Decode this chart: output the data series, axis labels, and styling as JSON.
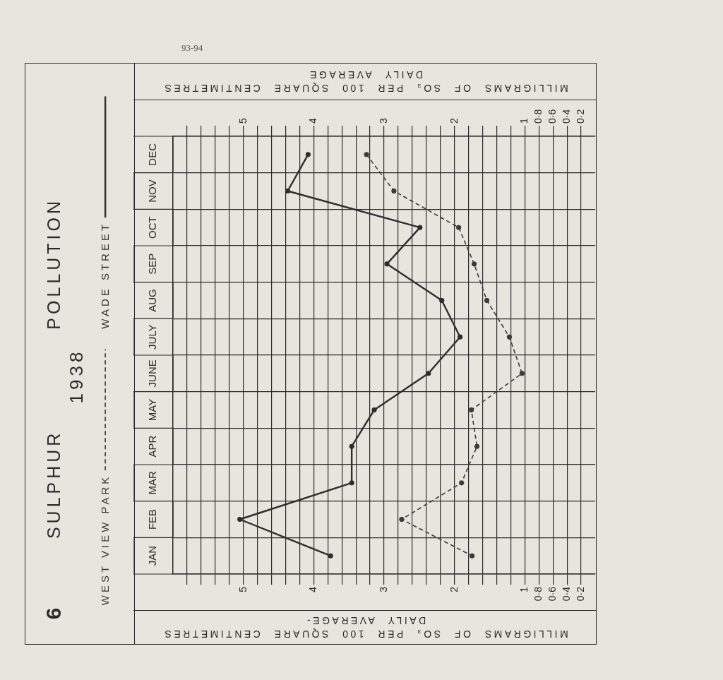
{
  "chart_data": {
    "type": "line",
    "orientation": "horizontal",
    "title": "SULPHUR POLLUTION",
    "subtitle": "1938",
    "xlabel": "MILLIGRAMS OF SO₃ PER 100 SQUARE CENTIMETRES\nDAILY AVERAGE-",
    "x2label": "MILLIGRAMS OF SO₃ PER 100 SQUARE CENTIMETRES\nDAILY AVERAGE",
    "annotations": [
      "93-94",
      "6"
    ],
    "categories": [
      "DEC",
      "NOV",
      "OCT",
      "SEP",
      "AUG",
      "JULY",
      "JUNE",
      "MAY",
      "APR",
      "MAR",
      "FEB",
      "JAN"
    ],
    "series": [
      {
        "name": "WEST VIEW PARK",
        "color": "#3a3a3a",
        "line_style": "dashed",
        "values": [
          3.25,
          2.86,
          1.94,
          1.72,
          1.54,
          1.22,
          1.04,
          1.76,
          1.68,
          1.9,
          2.75,
          1.75
        ]
      },
      {
        "name": "WADE STREET",
        "color": "#2e2e2e",
        "line_style": "solid",
        "values": [
          4.08,
          4.37,
          2.49,
          2.96,
          2.18,
          1.92,
          2.37,
          3.14,
          3.46,
          3.46,
          5.05,
          3.76
        ]
      }
    ],
    "xlim": [
      6,
      0
    ],
    "xticks": [
      {
        "value": 0.2,
        "label": "0·2"
      },
      {
        "value": 0.4,
        "label": "0·4"
      },
      {
        "value": 0.6,
        "label": "0·6"
      },
      {
        "value": 0.8,
        "label": "0·8"
      },
      1,
      {
        "value": 1.2,
        "label": null
      },
      {
        "value": 1.4,
        "label": null
      },
      {
        "value": 1.6,
        "label": null
      },
      {
        "value": 1.8,
        "label": null
      },
      2,
      {
        "value": 2.2,
        "label": null
      },
      {
        "value": 2.4,
        "label": null
      },
      {
        "value": 2.6,
        "label": null
      },
      {
        "value": 2.8,
        "label": null
      },
      3,
      {
        "value": 3.2,
        "label": null
      },
      {
        "value": 3.4,
        "label": null
      },
      {
        "value": 3.6,
        "label": null
      },
      {
        "value": 3.8,
        "label": null
      },
      4,
      {
        "value": 4.2,
        "label": null
      },
      {
        "value": 4.4,
        "label": null
      },
      {
        "value": 4.6,
        "label": null
      },
      {
        "value": 4.8,
        "label": null
      },
      5,
      {
        "value": 5.2,
        "label": null
      },
      {
        "value": 5.4,
        "label": null
      },
      {
        "value": 5.6,
        "label": null
      },
      {
        "value": 5.8,
        "label": null
      }
    ],
    "x2lim": [
      6,
      0
    ],
    "x2ticks": [
      {
        "value": 0.2,
        "label": "0·2"
      },
      {
        "value": 0.4,
        "label": "0·4"
      },
      {
        "value": 0.6,
        "label": "0·6"
      },
      {
        "value": 0.8,
        "label": "0·8"
      },
      1,
      {
        "value": 1.2,
        "label": null
      },
      {
        "value": 1.4,
        "label": null
      },
      {
        "value": 1.6,
        "label": null
      },
      {
        "value": 1.8,
        "label": null
      },
      2,
      {
        "value": 2.2,
        "label": null
      },
      {
        "value": 2.4,
        "label": null
      },
      {
        "value": 2.6,
        "label": null
      },
      {
        "value": 2.8,
        "label": null
      },
      3,
      {
        "value": 3.2,
        "label": null
      },
      {
        "value": 3.4,
        "label": null
      },
      {
        "value": 3.6,
        "label": null
      },
      {
        "value": 3.8,
        "label": null
      },
      4,
      {
        "value": 4.2,
        "label": null
      },
      {
        "value": 4.4,
        "label": null
      },
      {
        "value": 4.6,
        "label": null
      },
      {
        "value": 4.8,
        "label": null
      },
      5,
      {
        "value": 5.2,
        "label": null
      },
      {
        "value": 5.4,
        "label": null
      },
      {
        "value": 5.6,
        "label": null
      },
      {
        "value": 5.8,
        "label": null
      }
    ],
    "grid": true,
    "legend": "left",
    "marker": "circle"
  }
}
